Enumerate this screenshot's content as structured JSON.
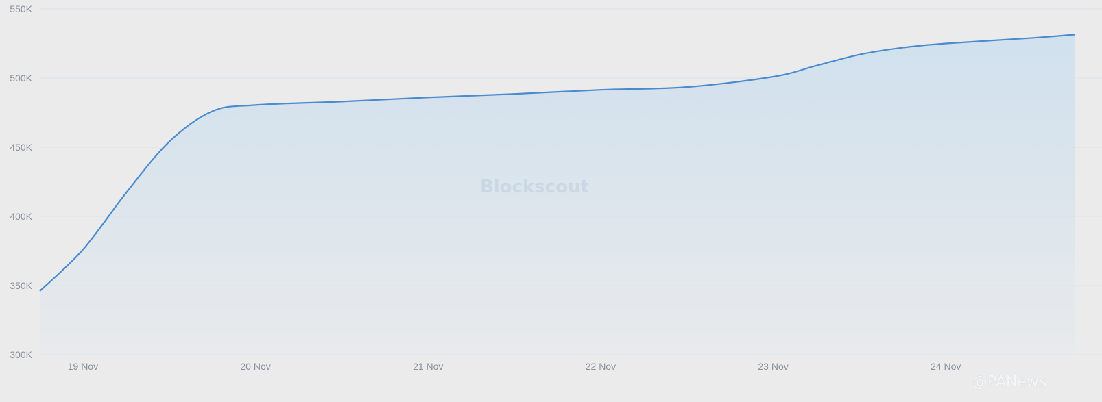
{
  "chart_data": {
    "type": "area",
    "title": "",
    "xlabel": "",
    "ylabel": "",
    "ylim": [
      300000,
      550000
    ],
    "yticks": [
      300000,
      350000,
      400000,
      450000,
      500000,
      550000
    ],
    "ytick_labels": [
      "300K",
      "350K",
      "400K",
      "450K",
      "500K",
      "550K"
    ],
    "xtick_labels": [
      "19 Nov",
      "20 Nov",
      "21 Nov",
      "22 Nov",
      "23 Nov",
      "24 Nov"
    ],
    "xrange": [
      "2024-11-18T18:00",
      "2024-11-24T18:00"
    ],
    "grid": true,
    "line_color": "#4a8bd0",
    "fill_color": "#cfe0ee",
    "x": [
      "2024-11-18T18:00",
      "2024-11-19T00:00",
      "2024-11-19T06:00",
      "2024-11-19T12:00",
      "2024-11-19T18:00",
      "2024-11-20T00:00",
      "2024-11-20T12:00",
      "2024-11-21T00:00",
      "2024-11-21T12:00",
      "2024-11-22T00:00",
      "2024-11-22T12:00",
      "2024-11-23T00:00",
      "2024-11-23T06:00",
      "2024-11-23T12:00",
      "2024-11-23T18:00",
      "2024-11-24T00:00",
      "2024-11-24T12:00",
      "2024-11-24T18:00"
    ],
    "values": [
      346000,
      376000,
      417000,
      454000,
      476000,
      480500,
      483000,
      486000,
      488500,
      491500,
      493500,
      501000,
      509000,
      517000,
      522000,
      525000,
      529000,
      531500
    ]
  },
  "watermarks": {
    "blockscout": "Blockscout",
    "panews": "@PANews"
  }
}
